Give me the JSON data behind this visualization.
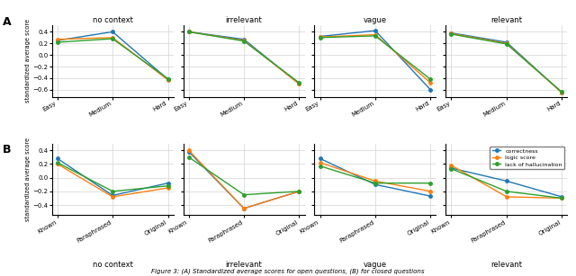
{
  "row_A": {
    "no_context": {
      "x_labels": [
        "Easy",
        "Medium",
        "Hard"
      ],
      "correctness": [
        0.25,
        0.4,
        -0.42
      ],
      "logic_score": [
        0.27,
        0.3,
        -0.43
      ],
      "lack_of_hallucination": [
        0.22,
        0.28,
        -0.41
      ]
    },
    "irrelevant": {
      "x_labels": [
        "Easy",
        "Medium",
        "Hard"
      ],
      "correctness": [
        0.4,
        0.27,
        -0.5
      ],
      "logic_score": [
        0.4,
        0.25,
        -0.5
      ],
      "lack_of_hallucination": [
        0.4,
        0.24,
        -0.48
      ]
    },
    "vague": {
      "x_labels": [
        "Easy",
        "Medium",
        "Hard"
      ],
      "correctness": [
        0.32,
        0.42,
        -0.6
      ],
      "logic_score": [
        0.31,
        0.35,
        -0.48
      ],
      "lack_of_hallucination": [
        0.3,
        0.33,
        -0.42
      ]
    },
    "relevant": {
      "x_labels": [
        "Easy",
        "Medium",
        "Hard"
      ],
      "correctness": [
        0.38,
        0.22,
        -0.65
      ],
      "logic_score": [
        0.37,
        0.2,
        -0.65
      ],
      "lack_of_hallucination": [
        0.36,
        0.19,
        -0.64
      ]
    }
  },
  "row_B": {
    "no_context": {
      "x_labels": [
        "Known",
        "Paraphrased",
        "Original"
      ],
      "correctness": [
        0.28,
        -0.26,
        -0.08
      ],
      "logic_score": [
        0.2,
        -0.28,
        -0.15
      ],
      "lack_of_hallucination": [
        0.22,
        -0.2,
        -0.12
      ]
    },
    "irrelevant": {
      "x_labels": [
        "Known",
        "Paraphrased",
        "Original"
      ],
      "correctness": [
        0.38,
        -0.45,
        -0.2
      ],
      "logic_score": [
        0.4,
        -0.45,
        -0.2
      ],
      "lack_of_hallucination": [
        0.3,
        -0.25,
        -0.2
      ]
    },
    "vague": {
      "x_labels": [
        "Known",
        "Paraphrased",
        "Original"
      ],
      "correctness": [
        0.28,
        -0.1,
        -0.27
      ],
      "logic_score": [
        0.22,
        -0.05,
        -0.2
      ],
      "lack_of_hallucination": [
        0.17,
        -0.08,
        -0.08
      ]
    },
    "relevant": {
      "x_labels": [
        "Known",
        "Paraphrased",
        "Original"
      ],
      "correctness": [
        0.14,
        -0.05,
        -0.28
      ],
      "logic_score": [
        0.18,
        -0.28,
        -0.3
      ],
      "lack_of_hallucination": [
        0.13,
        -0.2,
        -0.3
      ]
    }
  },
  "colors": {
    "correctness": "#1f77b4",
    "logic_score": "#ff7f0e",
    "lack_of_hallucination": "#2ca02c"
  },
  "legend_labels": [
    "correctness",
    "logic score",
    "lack of hallucination"
  ],
  "ylabel": "standardized average score",
  "subplot_titles_A": [
    "no context",
    "irrelevant",
    "vague",
    "relevant"
  ],
  "subplot_titles_B": [
    "no context",
    "irrelevant",
    "vague",
    "relevant"
  ],
  "row_labels": [
    "A",
    "B"
  ],
  "figure_caption": "Figure 3: (A) Standardized average scores for open questions, (B) for closed questions",
  "ylim_A": [
    -0.72,
    0.52
  ],
  "ylim_B": [
    -0.55,
    0.5
  ],
  "yticks_A": [
    -0.6,
    -0.4,
    -0.2,
    0.0,
    0.2,
    0.4
  ],
  "yticks_B": [
    -0.4,
    -0.2,
    0.0,
    0.2,
    0.4
  ]
}
